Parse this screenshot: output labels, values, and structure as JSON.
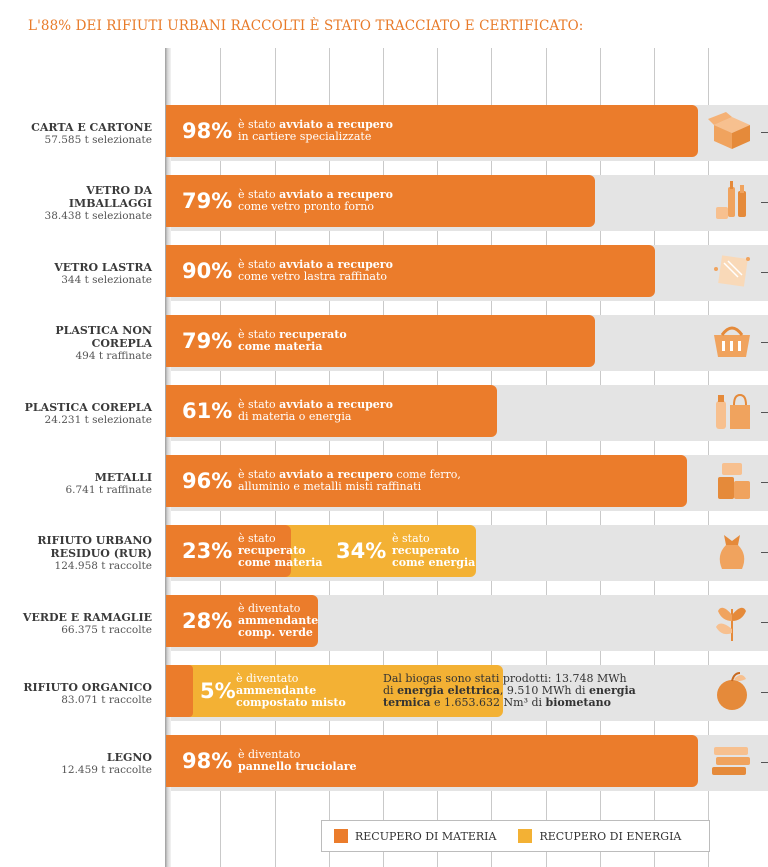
{
  "title": "L'88% DEI RIFIUTI URBANI RACCOLTI È STATO TRACCIATO E CERTIFICATO:",
  "colors": {
    "materia": "#eb7c2b",
    "energia": "#f3b134",
    "row_bg": "#e4e4e4"
  },
  "legend": {
    "materia": "RECUPERO DI MATERIA",
    "energia": "RECUPERO DI ENERGIA"
  },
  "chart_data": {
    "type": "bar",
    "orientation": "horizontal",
    "stacked": true,
    "xlim": [
      0,
      100
    ],
    "grid": true,
    "legend_position": "bottom",
    "categories": [
      "CARTA E CARTONE",
      "VETRO DA IMBALLAGGI",
      "VETRO LASTRA",
      "PLASTICA NON COREPLA",
      "PLASTICA COREPLA",
      "METALLI",
      "RIFIUTO URBANO RESIDUO (RUR)",
      "VERDE E RAMAGLIE",
      "RIFIUTO ORGANICO",
      "LEGNO"
    ],
    "series": [
      {
        "name": "RECUPERO DI MATERIA",
        "values": [
          98,
          79,
          90,
          79,
          61,
          96,
          23,
          28,
          5,
          98
        ]
      },
      {
        "name": "RECUPERO DI ENERGIA",
        "values": [
          0,
          0,
          0,
          0,
          0,
          0,
          34,
          0,
          57,
          0
        ]
      }
    ]
  },
  "rows": [
    {
      "name": "CARTA E CARTONE",
      "sub": "57.585 t selezionate",
      "icon": "box-icon",
      "pct": "98%",
      "d1": "è stato ",
      "d1b": "avviato a recupero",
      "d2": "in cartiere specializzate",
      "d2b": ""
    },
    {
      "name": "VETRO DA IMBALLAGGI",
      "sub": "38.438 t selezionate",
      "icon": "bottles-icon",
      "pct": "79%",
      "d1": "è stato ",
      "d1b": "avviato a recupero",
      "d2": "come vetro pronto forno",
      "d2b": ""
    },
    {
      "name": "VETRO LASTRA",
      "sub": "344 t selezionate",
      "icon": "glass-pane-icon",
      "pct": "90%",
      "d1": "è stato ",
      "d1b": "avviato a recupero",
      "d2": "come vetro lastra raffinato",
      "d2b": ""
    },
    {
      "name": "PLASTICA NON COREPLA",
      "sub": "494 t raffinate",
      "icon": "basket-icon",
      "pct": "79%",
      "d1": "è stato ",
      "d1b": "recuperato",
      "d2": "",
      "d2b": "come materia"
    },
    {
      "name": "PLASTICA COREPLA",
      "sub": "24.231 t selezionate",
      "icon": "plastic-bottle-bag-icon",
      "pct": "61%",
      "d1": "è stato ",
      "d1b": "avviato a recupero",
      "d2": "di materia o energia",
      "d2b": ""
    },
    {
      "name": "METALLI",
      "sub": "6.741 t raffinate",
      "icon": "cans-icon",
      "pct": "96%",
      "d1": "è stato ",
      "d1b": "avviato a recupero",
      "d1c": " come ferro,",
      "d2": "alluminio e metalli misti raffinati",
      "d2b": ""
    },
    {
      "name": "RIFIUTO URBANO RESIDUO (RUR)",
      "sub": "124.958 t raccolte",
      "icon": "trash-bag-icon",
      "pct": "23%",
      "l1": "è stato",
      "l2": "recuperato",
      "l3": "come materia",
      "pct2": "34%",
      "e1": "è stato",
      "e2": "recuperato",
      "e3": "come energia"
    },
    {
      "name": "VERDE E RAMAGLIE",
      "sub": "66.375 t raccolte",
      "icon": "leaves-icon",
      "pct": "28%",
      "l1": "è diventato",
      "l2": "ammendante",
      "l3": "comp. verde"
    },
    {
      "name": "RIFIUTO ORGANICO",
      "sub": "83.071 t raccolte",
      "icon": "apple-icon",
      "pct": "5%",
      "l1": "è diventato",
      "l2": "ammendante",
      "l3": "compostato misto",
      "n1": "Dal biogas sono stati prodotti: 13.748 MWh",
      "n2a": "di ",
      "n2b": "energia elettrica",
      "n2c": ", 9.510 MWh di ",
      "n2d": "energia",
      "n3a": "termica",
      "n3b": " e 1.653.632 Nm³ di ",
      "n3c": "biometano"
    },
    {
      "name": "LEGNO",
      "sub": "12.459 t raccolte",
      "icon": "wood-planks-icon",
      "pct": "98%",
      "l1": "è diventato",
      "l2": "pannello truciolare"
    }
  ]
}
